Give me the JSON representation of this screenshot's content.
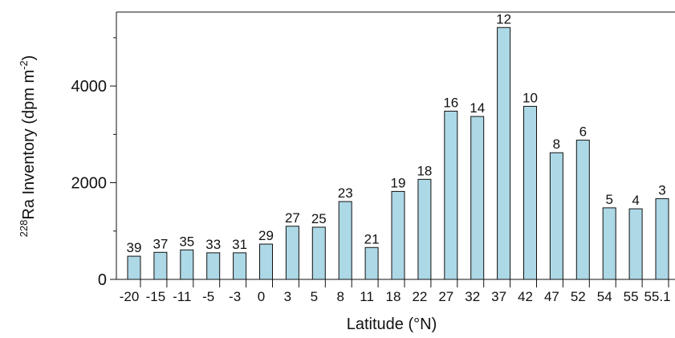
{
  "chart_data": {
    "type": "bar",
    "x_label": "Latitude (°N)",
    "y_label": {
      "sup_pre": "228",
      "main": "Ra Inventory (dpm m",
      "sup_post": "-2",
      "close": ")"
    },
    "categories": [
      "-20",
      "-15",
      "-11",
      "-5",
      "-3",
      "0",
      "3",
      "5",
      "8",
      "11",
      "18",
      "22",
      "27",
      "32",
      "37",
      "42",
      "47",
      "52",
      "54",
      "55",
      "55.1"
    ],
    "values": [
      480,
      560,
      610,
      550,
      550,
      730,
      1100,
      1080,
      1610,
      660,
      1820,
      2070,
      3480,
      3370,
      5210,
      3580,
      2620,
      2880,
      1480,
      1460,
      1670
    ],
    "bar_labels": [
      "39",
      "37",
      "35",
      "33",
      "31",
      "29",
      "27",
      "25",
      "23",
      "21",
      "19",
      "18",
      "16",
      "14",
      "12",
      "10",
      "8",
      "6",
      "5",
      "4",
      "3"
    ],
    "color": "#add8e6",
    "ylim": [
      0,
      5530
    ],
    "yticks": [
      0,
      2000,
      4000
    ],
    "minor_yticks": [
      1000,
      3000,
      5000
    ]
  }
}
